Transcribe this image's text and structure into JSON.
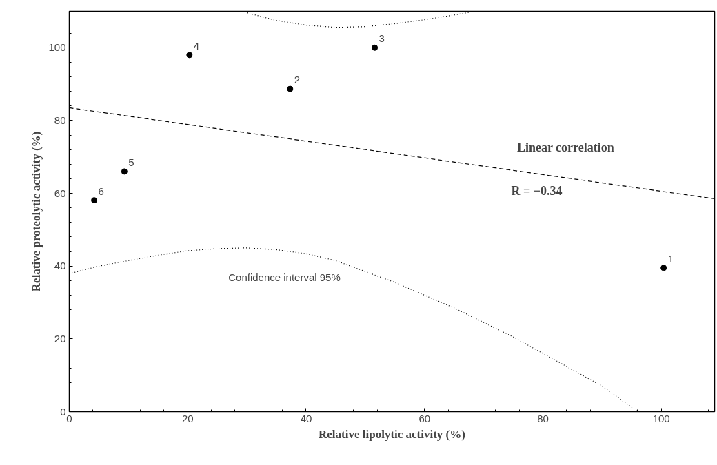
{
  "chart_data": {
    "type": "scatter",
    "xlabel": "Relative lipolytic activity (%)",
    "ylabel": "Relative proteolytic activity (%)",
    "xlim": [
      0,
      109
    ],
    "ylim": [
      0,
      110
    ],
    "xticks": [
      0,
      20,
      40,
      60,
      80,
      100
    ],
    "yticks": [
      0,
      20,
      40,
      60,
      80,
      100
    ],
    "grid": false,
    "series": [
      {
        "marker": "circle",
        "color": "#000000",
        "x": [
          100.4,
          37.3,
          51.6,
          20.3,
          9.3,
          4.2
        ],
        "values": [
          39.5,
          88.7,
          100,
          98,
          66,
          58.1
        ]
      },
      {
        "type": "line",
        "line_style": "dashed",
        "color": "#000000",
        "x": [
          0,
          109
        ],
        "values": [
          83.5,
          58.5
        ]
      },
      {
        "type": "line",
        "line_style": "dotted",
        "color": "#000000",
        "x": [
          0,
          5,
          10,
          15,
          20,
          25,
          30,
          35,
          40,
          45,
          50,
          55,
          60,
          65,
          70,
          75,
          80,
          85,
          90,
          96
        ],
        "values": [
          37.9,
          40,
          41.5,
          43,
          44.2,
          44.8,
          45,
          44.5,
          43.4,
          41.5,
          38.5,
          35.5,
          32,
          28.5,
          24.5,
          20.5,
          16,
          11.5,
          7,
          0
        ]
      },
      {
        "type": "line",
        "line_style": "dotted",
        "color": "#000000",
        "x": [
          30,
          35,
          40,
          45,
          50,
          55,
          60,
          65,
          67.5
        ],
        "values": [
          109.6,
          107.5,
          106.2,
          105.6,
          105.8,
          106.6,
          107.7,
          109,
          109.7
        ]
      }
    ],
    "annotations": [
      {
        "text": "1",
        "x": 100.4,
        "y": 39.5
      },
      {
        "text": "2",
        "x": 37.3,
        "y": 88.7
      },
      {
        "text": "3",
        "x": 51.6,
        "y": 100
      },
      {
        "text": "4",
        "x": 20.3,
        "y": 98
      },
      {
        "text": "5",
        "x": 9.3,
        "y": 66
      },
      {
        "text": "6",
        "x": 4.2,
        "y": 58.1
      },
      "Linear correlation",
      "R = −0.34",
      "Confidence interval 95%"
    ]
  }
}
